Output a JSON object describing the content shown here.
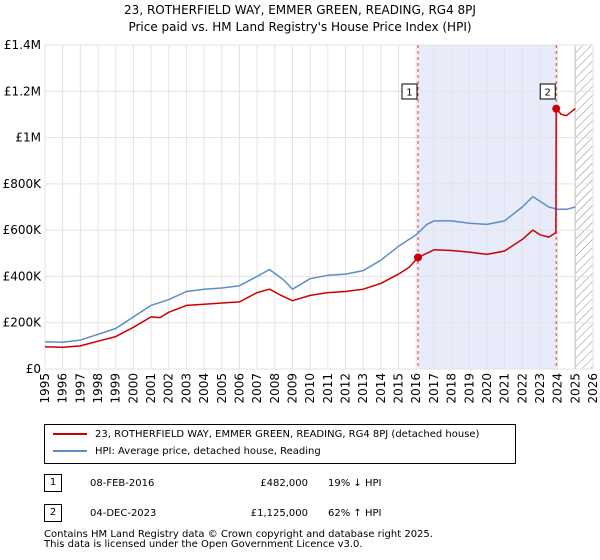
{
  "chart_data": {
    "type": "line",
    "title": "23, ROTHERFIELD WAY, EMMER GREEN, READING, RG4 8PJ",
    "subtitle": "Price paid vs. HM Land Registry's House Price Index (HPI)",
    "xlim": [
      1995,
      2026
    ],
    "ylim": [
      0,
      1400000
    ],
    "x_ticks": [
      "1995",
      "1996",
      "1997",
      "1998",
      "1999",
      "2000",
      "2001",
      "2002",
      "2003",
      "2004",
      "2005",
      "2006",
      "2007",
      "2008",
      "2009",
      "2010",
      "2011",
      "2012",
      "2013",
      "2014",
      "2015",
      "2016",
      "2017",
      "2018",
      "2019",
      "2020",
      "2021",
      "2022",
      "2023",
      "2024",
      "2025",
      "2026"
    ],
    "y_ticks": [
      {
        "value": 0,
        "label": "£0"
      },
      {
        "value": 200000,
        "label": "£200K"
      },
      {
        "value": 400000,
        "label": "£400K"
      },
      {
        "value": 600000,
        "label": "£600K"
      },
      {
        "value": 800000,
        "label": "£800K"
      },
      {
        "value": 1000000,
        "label": "£1M"
      },
      {
        "value": 1200000,
        "label": "£1.2M"
      },
      {
        "value": 1400000,
        "label": "£1.4M"
      }
    ],
    "grid": true,
    "colors": {
      "property": "#cc0000",
      "hpi": "#5b8ec9",
      "shade": "#e8ecfa",
      "hatch": "#888888",
      "marker": "#cc0000"
    },
    "shaded_range": [
      2016.1,
      2023.92
    ],
    "forecast_start": 2025.0,
    "series": [
      {
        "name": "23, ROTHERFIELD WAY, EMMER GREEN, READING, RG4 8PJ (detached house)",
        "key": "property",
        "x": [
          1995,
          1996,
          1997,
          1998,
          1999,
          2000,
          2001,
          2001.5,
          2002,
          2003,
          2004,
          2005,
          2006,
          2007,
          2007.7,
          2008.3,
          2009,
          2010,
          2011,
          2012,
          2013,
          2014,
          2015,
          2015.6,
          2016.1,
          2016.6,
          2017,
          2018,
          2019,
          2020,
          2021,
          2022,
          2022.6,
          2023,
          2023.5,
          2023.9,
          2023.92,
          2024.2,
          2024.5,
          2025
        ],
        "y": [
          96000,
          94000,
          100000,
          120000,
          140000,
          180000,
          225000,
          222000,
          245000,
          275000,
          280000,
          285000,
          290000,
          330000,
          345000,
          320000,
          295000,
          318000,
          330000,
          335000,
          345000,
          370000,
          410000,
          440000,
          482000,
          500000,
          515000,
          512000,
          505000,
          495000,
          510000,
          560000,
          600000,
          580000,
          570000,
          590000,
          1125000,
          1100000,
          1095000,
          1125000
        ]
      },
      {
        "name": "HPI: Average price, detached house, Reading",
        "key": "hpi",
        "x": [
          1995,
          1996,
          1997,
          1998,
          1999,
          2000,
          2001,
          2002,
          2003,
          2004,
          2005,
          2006,
          2007,
          2007.7,
          2008.5,
          2009,
          2010,
          2011,
          2012,
          2013,
          2014,
          2015,
          2016,
          2016.6,
          2017,
          2018,
          2019,
          2020,
          2021,
          2022,
          2022.6,
          2023,
          2023.5,
          2024,
          2024.5,
          2025
        ],
        "y": [
          118000,
          116000,
          125000,
          150000,
          175000,
          225000,
          275000,
          300000,
          335000,
          345000,
          350000,
          360000,
          400000,
          430000,
          385000,
          345000,
          390000,
          405000,
          410000,
          425000,
          470000,
          530000,
          580000,
          625000,
          640000,
          640000,
          630000,
          625000,
          640000,
          700000,
          745000,
          725000,
          700000,
          690000,
          690000,
          700000
        ]
      }
    ],
    "sales": [
      {
        "n": "1",
        "x": 2016.1,
        "y": 482000
      },
      {
        "n": "2",
        "x": 2023.92,
        "y": 1125000
      }
    ]
  },
  "legend": {
    "property": "23, ROTHERFIELD WAY, EMMER GREEN, READING, RG4 8PJ (detached house)",
    "hpi": "HPI: Average price, detached house, Reading"
  },
  "transactions": [
    {
      "n": "1",
      "date": "08-FEB-2016",
      "price": "£482,000",
      "hpi": "19% ↓ HPI"
    },
    {
      "n": "2",
      "date": "04-DEC-2023",
      "price": "£1,125,000",
      "hpi": "62% ↑ HPI"
    }
  ],
  "footer": {
    "line1": "Contains HM Land Registry data © Crown copyright and database right 2025.",
    "line2": "This data is licensed under the Open Government Licence v3.0."
  }
}
